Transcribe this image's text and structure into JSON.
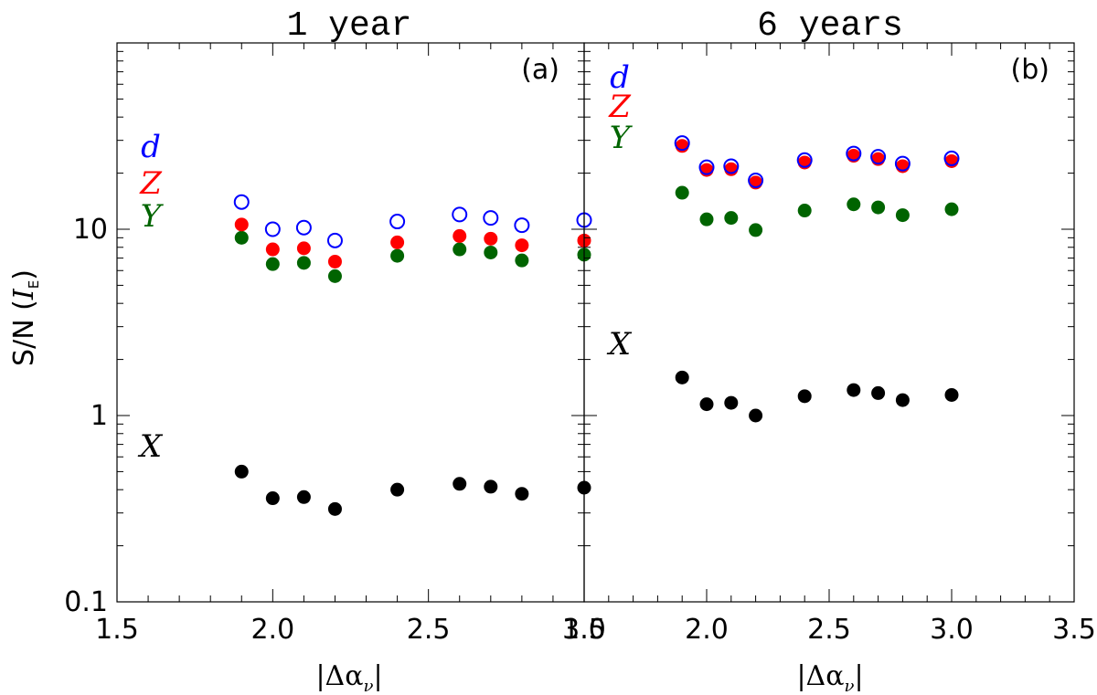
{
  "chart_data": [
    {
      "type": "scatter",
      "title": "1 year",
      "panel_label": "(a)",
      "xlabel": "|Δα",
      "xlabel_sub": "ν",
      "xlabel_end": "|",
      "ylabel": "S/N (",
      "ylabel_sym": "I",
      "ylabel_sub": "E",
      "ylabel_end": ")",
      "yscale": "log",
      "xlim": [
        1.5,
        3.0
      ],
      "ylim": [
        0.1,
        100
      ],
      "x_ticks": [
        1.5,
        2.0,
        2.5,
        3.0
      ],
      "x_tick_labels": [
        "1.5",
        "2.0",
        "2.5",
        "3.0"
      ],
      "y_ticks": [
        0.1,
        1,
        10
      ],
      "y_tick_labels": [
        "0.1",
        "1",
        "10"
      ],
      "x": [
        1.9,
        2.0,
        2.1,
        2.2,
        2.4,
        2.6,
        2.7,
        2.8,
        3.0
      ],
      "series": [
        {
          "name": "d",
          "color": "#0000ff",
          "marker": "open-circle",
          "values": [
            14.0,
            10.0,
            10.2,
            8.7,
            11.0,
            12.0,
            11.5,
            10.5,
            11.2
          ]
        },
        {
          "name": "Z",
          "color": "#ff0000",
          "marker": "filled-circle",
          "values": [
            10.6,
            7.8,
            7.9,
            6.7,
            8.5,
            9.2,
            8.9,
            8.2,
            8.7
          ]
        },
        {
          "name": "Y",
          "color": "#006400",
          "marker": "filled-circle",
          "values": [
            9.0,
            6.5,
            6.6,
            5.6,
            7.2,
            7.8,
            7.5,
            6.8,
            7.3
          ]
        },
        {
          "name": "X",
          "color": "#000000",
          "marker": "filled-circle",
          "values": [
            0.5,
            0.36,
            0.365,
            0.315,
            0.4,
            0.43,
            0.415,
            0.38,
            0.41
          ]
        }
      ]
    },
    {
      "type": "scatter",
      "title": "6 years",
      "panel_label": "(b)",
      "xlabel": "|Δα",
      "xlabel_sub": "ν",
      "xlabel_end": "|",
      "yscale": "log",
      "xlim": [
        1.5,
        3.5
      ],
      "ylim": [
        0.1,
        100
      ],
      "x_ticks": [
        1.5,
        2.0,
        2.5,
        3.0,
        3.5
      ],
      "x_tick_labels": [
        "1.5",
        "2.0",
        "2.5",
        "3.0",
        "3.5"
      ],
      "x": [
        1.9,
        2.0,
        2.1,
        2.2,
        2.4,
        2.6,
        2.7,
        2.8,
        3.0
      ],
      "series": [
        {
          "name": "d",
          "color": "#0000ff",
          "marker": "open-circle",
          "values": [
            29.0,
            21.5,
            21.8,
            18.3,
            23.5,
            25.5,
            24.5,
            22.5,
            24.0
          ]
        },
        {
          "name": "Z",
          "color": "#ff0000",
          "marker": "filled-circle",
          "values": [
            28.0,
            20.8,
            21.0,
            17.8,
            22.8,
            24.8,
            23.8,
            21.8,
            23.2
          ]
        },
        {
          "name": "Y",
          "color": "#006400",
          "marker": "filled-circle",
          "values": [
            15.7,
            11.3,
            11.5,
            9.9,
            12.6,
            13.6,
            13.1,
            11.9,
            12.8
          ]
        },
        {
          "name": "X",
          "color": "#000000",
          "marker": "filled-circle",
          "values": [
            1.6,
            1.15,
            1.17,
            1.0,
            1.27,
            1.37,
            1.32,
            1.21,
            1.29
          ]
        }
      ]
    }
  ]
}
